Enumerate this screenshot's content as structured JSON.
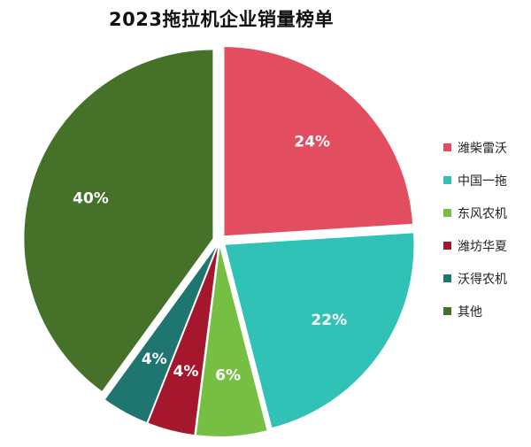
{
  "chart_data": {
    "type": "pie",
    "title": "2023拖拉机企业销量榜单",
    "categories": [
      "潍柴雷沃",
      "中国一拖",
      "东风农机",
      "潍坊华夏",
      "沃得农机",
      "其他"
    ],
    "values": [
      24,
      22,
      6,
      4,
      4,
      40
    ],
    "data_labels": [
      "24%",
      "22%",
      "6%",
      "4%",
      "4%",
      "40%"
    ],
    "colors": [
      "#e24d60",
      "#30c1b7",
      "#76bf43",
      "#a4172d",
      "#1f7570",
      "#467128"
    ],
    "legend_position": "right",
    "exploded": true,
    "start_angle_deg": 0,
    "direction": "clockwise"
  }
}
